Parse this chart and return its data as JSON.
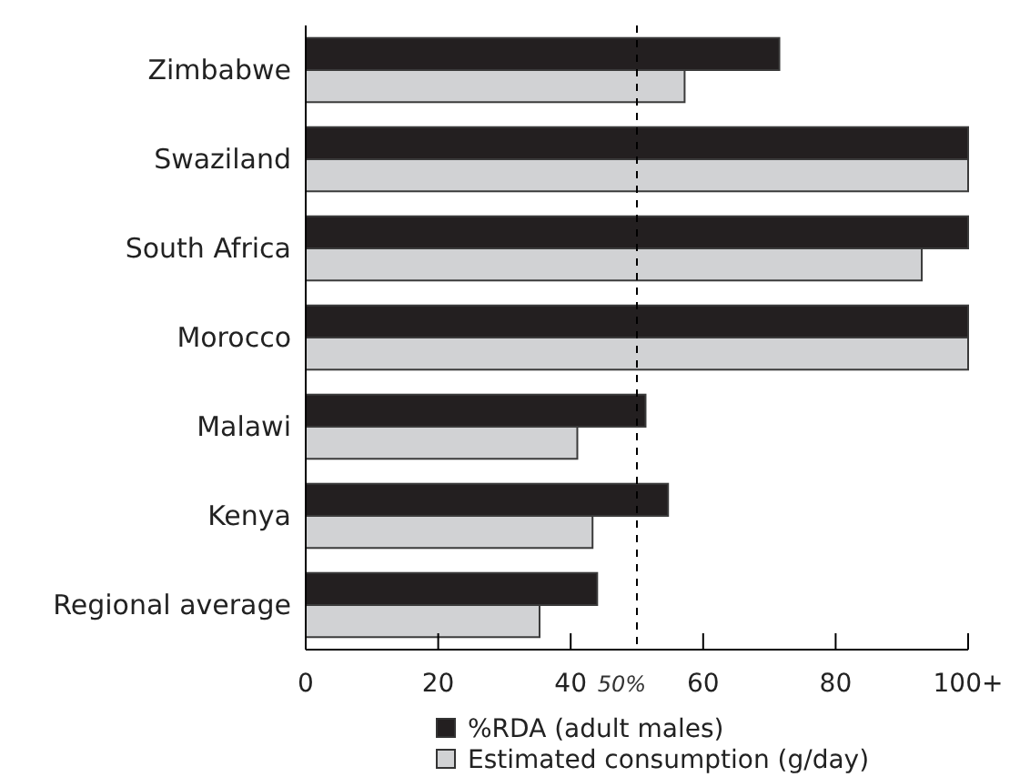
{
  "chart_data": {
    "type": "bar",
    "orientation": "horizontal",
    "categories": [
      "Zimbabwe",
      "Swaziland",
      "South Africa",
      "Morocco",
      "Malawi",
      "Kenya",
      "Regional average"
    ],
    "series": [
      {
        "name": "%RDA (adult males)",
        "color": "#231f20",
        "values": [
          71.5,
          100,
          100,
          100,
          51.3,
          54.7,
          44
        ]
      },
      {
        "name": "Estimated consumption (g/day)",
        "color": "#d1d2d4",
        "values": [
          57.2,
          100,
          93,
          100,
          41,
          43.3,
          35.3
        ]
      }
    ],
    "xlim": [
      0,
      100
    ],
    "xticks": [
      0,
      20,
      40,
      60,
      80,
      {
        "value": 100,
        "label": "100+"
      }
    ],
    "ref_lines": [
      {
        "axis": "x",
        "value": 50,
        "label": "50%",
        "line_style": "dashed"
      }
    ],
    "legend": "bottom",
    "grid": false
  }
}
